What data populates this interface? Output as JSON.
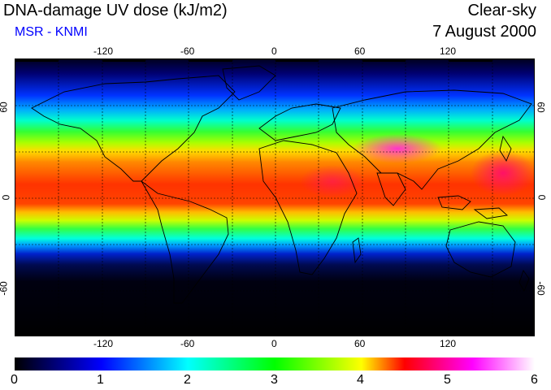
{
  "header": {
    "title": "DNA-damage UV dose (kJ/m2)",
    "subtitle": "MSR - KNMI",
    "sky_condition": "Clear-sky",
    "date": "7 August 2000"
  },
  "map": {
    "lon_ticks": [
      "-120",
      "-60",
      "0",
      "60",
      "120"
    ],
    "lat_ticks_left": [
      "60",
      "0",
      "-60"
    ],
    "lat_ticks_right": [
      "60",
      "0",
      "-60"
    ],
    "gridlines": true,
    "colors": {
      "polar": "#000010",
      "blue": "#0033ff",
      "cyan": "#00e0ff",
      "green": "#33ff33",
      "yellow": "#ffee00",
      "orange": "#ff7a00",
      "red": "#ff2200",
      "magenta": "#ff33aa"
    }
  },
  "colorbar": {
    "labels": [
      "0",
      "1",
      "2",
      "3",
      "4",
      "5",
      "6"
    ],
    "colors": [
      "#000000",
      "#0000ff",
      "#00ffff",
      "#00ff00",
      "#ffff00",
      "#ff0000",
      "#ff00ff",
      "#ffffff"
    ]
  }
}
